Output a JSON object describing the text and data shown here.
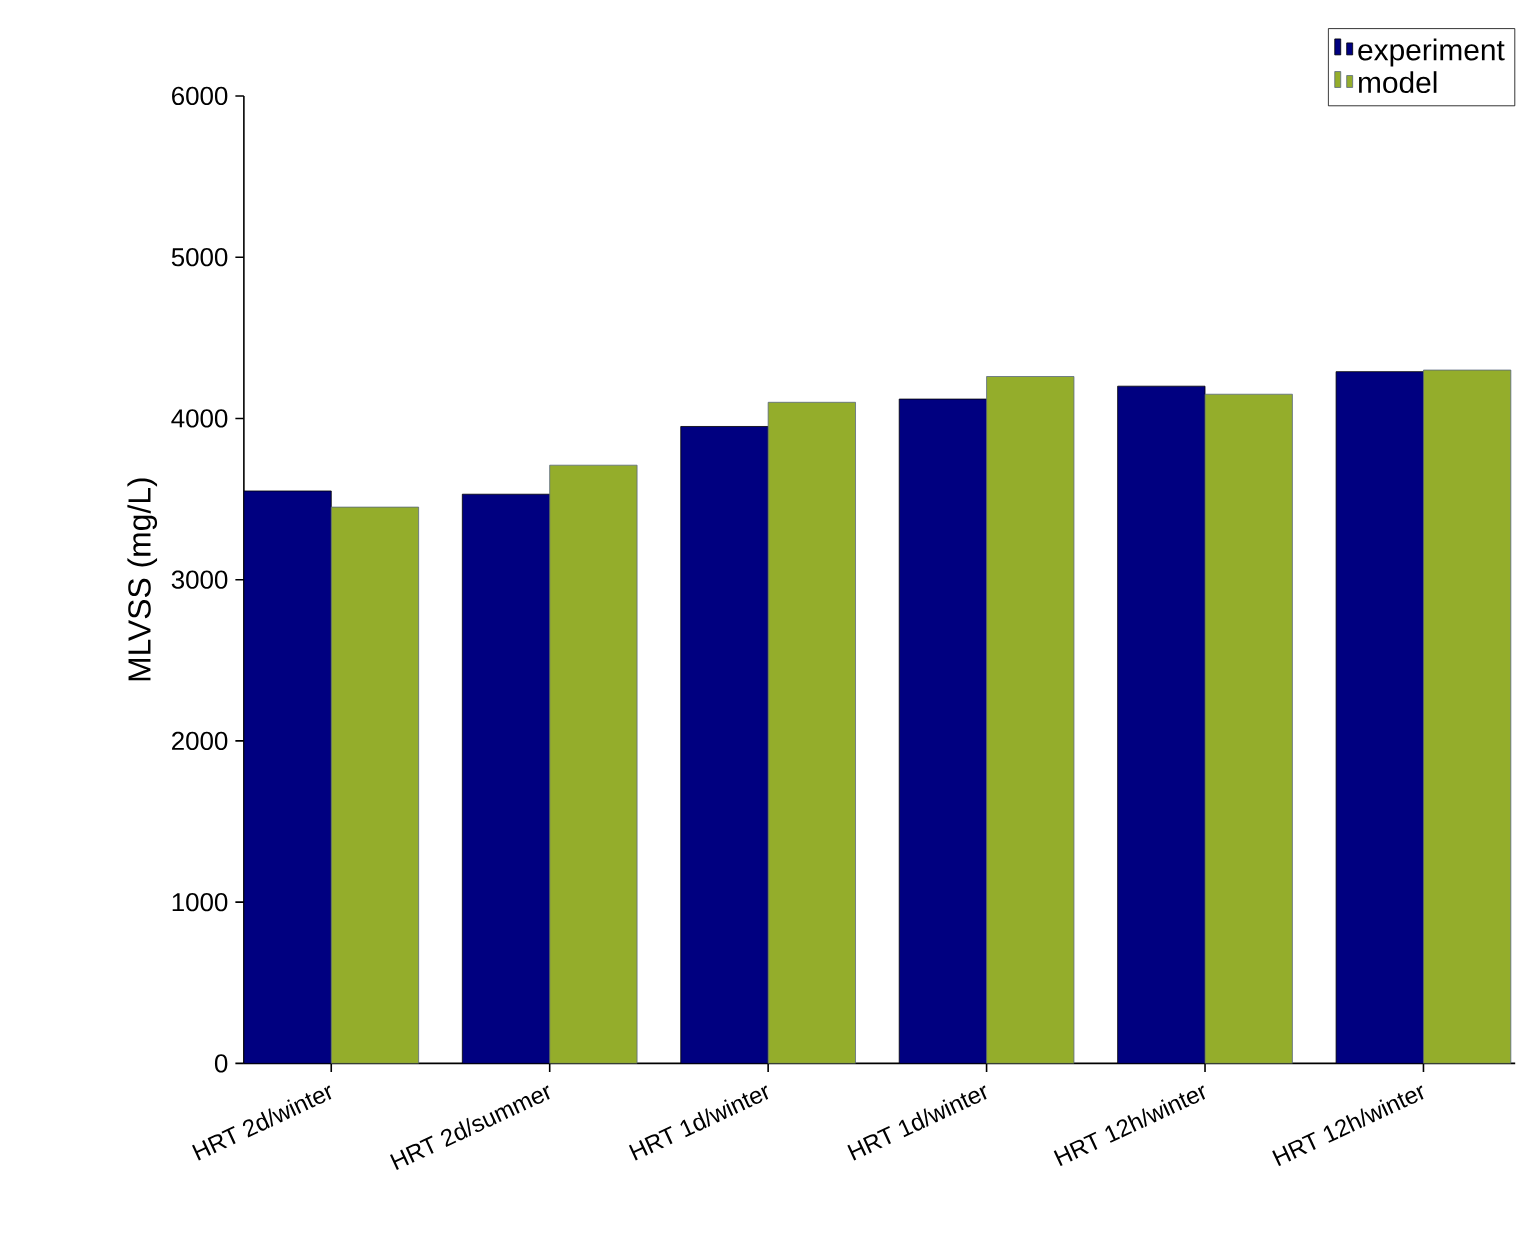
{
  "chart_data": {
    "type": "bar",
    "ylabel": "MLVSS (mg/L)",
    "categories": [
      "HRT 2d/winter",
      "HRT 2d/summer",
      "HRT 1d/winter",
      "HRT 1d/winter",
      "HRT 12h/winter",
      "HRT 12h/winter"
    ],
    "series": [
      {
        "name": "experiment",
        "color": "#000080",
        "values": [
          3550,
          3530,
          3950,
          4120,
          4200,
          4290
        ]
      },
      {
        "name": "model",
        "color": "#94ad2b",
        "values": [
          3450,
          3710,
          4100,
          4260,
          4150,
          4300
        ]
      }
    ],
    "ylim": [
      0,
      6000
    ],
    "yticks": [
      0,
      1000,
      2000,
      3000,
      4000,
      5000,
      6000
    ],
    "legend": "top right"
  }
}
